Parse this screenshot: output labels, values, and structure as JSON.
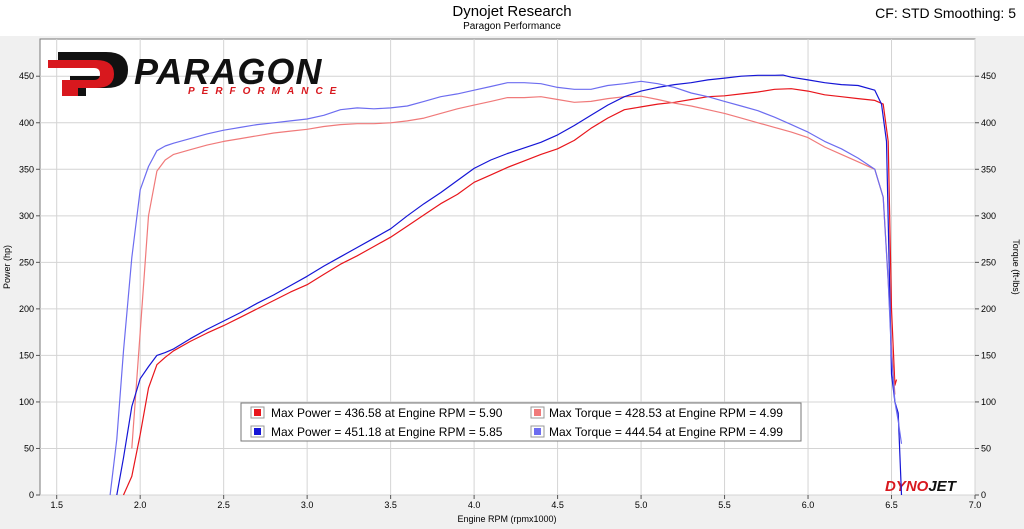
{
  "header": {
    "title": "Dynojet Research",
    "subtitle": "Paragon Performance",
    "right": "CF: STD Smoothing: 5"
  },
  "logo": {
    "brand": "PARAGON",
    "tag": "PERFORMANCE",
    "watermark": "DYNOJET"
  },
  "colors": {
    "power1": "#e8151b",
    "torque1": "#f07a7a",
    "power2": "#1515d6",
    "torque2": "#6d6df0",
    "grid": "#d4d4d4",
    "plot_bg": "#ffffff",
    "frame": "#777777",
    "outer_bg": "#f0f0f0"
  },
  "chart_data": {
    "type": "line",
    "title": "Dynojet Research",
    "subtitle": "Paragon Performance",
    "xlabel": "Engine RPM (rpmx1000)",
    "ylabel_left": "Power (hp)",
    "ylabel_right": "Torque (ft-lbs)",
    "xlim": [
      1.4,
      7.0
    ],
    "ylim": [
      0,
      490
    ],
    "xticks": [
      "1.5",
      "2.0",
      "2.5",
      "3.0",
      "3.5",
      "4.0",
      "4.5",
      "5.0",
      "5.5",
      "6.0",
      "6.5",
      "7.0"
    ],
    "yticks": [
      "0",
      "50",
      "100",
      "150",
      "200",
      "250",
      "300",
      "350",
      "400",
      "450"
    ],
    "grid": true,
    "legend": {
      "position": "bottom-center",
      "entries": [
        "Max Power = 436.58 at Engine RPM = 5.90",
        "Max Torque = 428.53 at Engine RPM = 4.99",
        "Max Power = 451.18 at Engine RPM = 5.85",
        "Max Torque = 444.54 at Engine RPM = 4.99"
      ]
    },
    "series": [
      {
        "role": "power1",
        "x": [
          1.9,
          1.95,
          2.0,
          2.05,
          2.1,
          2.15,
          2.2,
          2.3,
          2.4,
          2.5,
          2.6,
          2.7,
          2.8,
          2.9,
          3.0,
          3.1,
          3.2,
          3.3,
          3.4,
          3.5,
          3.6,
          3.7,
          3.8,
          3.9,
          4.0,
          4.1,
          4.2,
          4.3,
          4.4,
          4.5,
          4.6,
          4.7,
          4.8,
          4.9,
          5.0,
          5.1,
          5.2,
          5.3,
          5.4,
          5.5,
          5.6,
          5.7,
          5.8,
          5.9,
          6.0,
          6.1,
          6.2,
          6.3,
          6.4,
          6.45,
          6.48,
          6.5,
          6.52,
          6.53
        ],
        "y": [
          0,
          20,
          65,
          115,
          140,
          148,
          155,
          165,
          174,
          182,
          191,
          200,
          209,
          218,
          226,
          237,
          248,
          257,
          267,
          277,
          289,
          301,
          313,
          323,
          336,
          344,
          352,
          359,
          366,
          372,
          381,
          394,
          405,
          414,
          417,
          420,
          422,
          425,
          428,
          429,
          431,
          433,
          436,
          436.6,
          434,
          430,
          428,
          426,
          424,
          420,
          380,
          200,
          118,
          124
        ]
      },
      {
        "role": "torque1",
        "x": [
          1.95,
          2.0,
          2.05,
          2.1,
          2.15,
          2.2,
          2.3,
          2.4,
          2.5,
          2.6,
          2.7,
          2.8,
          2.9,
          3.0,
          3.1,
          3.2,
          3.3,
          3.4,
          3.5,
          3.6,
          3.7,
          3.8,
          3.9,
          4.0,
          4.1,
          4.2,
          4.3,
          4.4,
          4.5,
          4.6,
          4.7,
          4.8,
          4.9,
          5.0,
          5.1,
          5.2,
          5.3,
          5.4,
          5.5,
          5.6,
          5.7,
          5.8,
          5.9,
          6.0,
          6.1,
          6.2,
          6.3,
          6.4,
          6.45,
          6.48,
          6.5,
          6.52
        ],
        "y": [
          50,
          175,
          300,
          348,
          360,
          366,
          371,
          376,
          380,
          383,
          386,
          389,
          391,
          393,
          396,
          398,
          399,
          399,
          400,
          402,
          405,
          410,
          415,
          419,
          423,
          427,
          427,
          428,
          425,
          422,
          423,
          426,
          428,
          428.5,
          425,
          421,
          418,
          414,
          410,
          405,
          400,
          395,
          390,
          384,
          374,
          366,
          358,
          350,
          320,
          230,
          160,
          108
        ]
      },
      {
        "role": "power2",
        "x": [
          1.86,
          1.9,
          1.95,
          2.0,
          2.05,
          2.1,
          2.15,
          2.2,
          2.3,
          2.4,
          2.5,
          2.6,
          2.7,
          2.8,
          2.9,
          3.0,
          3.1,
          3.2,
          3.3,
          3.4,
          3.5,
          3.6,
          3.7,
          3.8,
          3.9,
          4.0,
          4.1,
          4.2,
          4.3,
          4.4,
          4.5,
          4.6,
          4.7,
          4.8,
          4.9,
          5.0,
          5.1,
          5.2,
          5.3,
          5.4,
          5.5,
          5.6,
          5.7,
          5.8,
          5.85,
          5.9,
          6.0,
          6.1,
          6.2,
          6.3,
          6.4,
          6.44,
          6.47,
          6.5,
          6.52,
          6.54,
          6.56
        ],
        "y": [
          0,
          40,
          95,
          125,
          138,
          150,
          153,
          157,
          168,
          178,
          187,
          196,
          206,
          215,
          225,
          235,
          246,
          256,
          266,
          276,
          286,
          300,
          313,
          325,
          338,
          351,
          360,
          367,
          373,
          379,
          387,
          397,
          408,
          419,
          428,
          434,
          438,
          441,
          443,
          446,
          448,
          450,
          451,
          451,
          451.2,
          449,
          446,
          443,
          441,
          440,
          435,
          420,
          380,
          130,
          100,
          88,
          0
        ]
      },
      {
        "role": "torque2",
        "x": [
          1.82,
          1.86,
          1.9,
          1.95,
          2.0,
          2.05,
          2.1,
          2.15,
          2.2,
          2.3,
          2.4,
          2.5,
          2.6,
          2.7,
          2.8,
          2.9,
          3.0,
          3.1,
          3.2,
          3.3,
          3.4,
          3.5,
          3.6,
          3.7,
          3.8,
          3.9,
          4.0,
          4.1,
          4.2,
          4.3,
          4.4,
          4.5,
          4.6,
          4.7,
          4.8,
          4.9,
          5.0,
          5.1,
          5.2,
          5.3,
          5.4,
          5.5,
          5.6,
          5.7,
          5.8,
          5.9,
          6.0,
          6.1,
          6.2,
          6.3,
          6.4,
          6.45,
          6.48,
          6.5,
          6.52,
          6.54,
          6.56
        ],
        "y": [
          0,
          60,
          155,
          255,
          328,
          353,
          370,
          375,
          378,
          383,
          388,
          392,
          395,
          398,
          400,
          402,
          404,
          408,
          414,
          416,
          415,
          416,
          418,
          423,
          428,
          431,
          435,
          439,
          443,
          443,
          442,
          438,
          436,
          436,
          440,
          442,
          444.5,
          442,
          438,
          432,
          428,
          423,
          418,
          413,
          406,
          398,
          390,
          380,
          372,
          362,
          350,
          320,
          230,
          150,
          100,
          80,
          55
        ]
      }
    ]
  }
}
